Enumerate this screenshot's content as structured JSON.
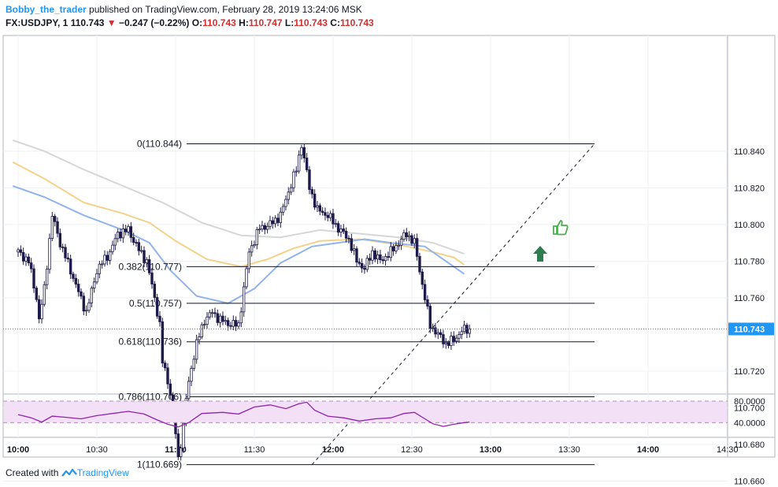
{
  "header": {
    "author": "Bobby_the_trader",
    "published_text": "published on TradingView.com, February 28, 2019 13:24:06 MSK",
    "symbol": "FX:USDJPY, 1",
    "last": "110.743",
    "change": "−0.247 (−0.22%)",
    "ohlc": {
      "o_label": "O:",
      "o": "110.743",
      "h_label": "H:",
      "h": "110.747",
      "l_label": "L:",
      "l": "110.743",
      "c_label": "C:",
      "c": "110.743"
    }
  },
  "footer": {
    "created_with": "Created with",
    "brand": "TradingView"
  },
  "colors": {
    "accent": "#2196f3",
    "down": "#d32f2f",
    "candle": "#1e1b4b",
    "ema_fast": "#90b4ea",
    "ema_mid": "#f2d28a",
    "ema_slow": "#d6d6d6",
    "rsi_line": "#8e24aa",
    "rsi_band": "#f3e0f7",
    "price_tag": "#2196f3",
    "thumb": "#4caf50",
    "arrow": "#2e7d4f"
  },
  "chart_data": {
    "type": "candlestick",
    "symbol": "FX:USDJPY",
    "interval": "1",
    "last_price": 110.743,
    "y_ticks": [
      "110.840",
      "110.820",
      "110.800",
      "110.780",
      "110.760",
      "110.720",
      "110.700",
      "110.680",
      "110.660"
    ],
    "ylim": [
      110.656,
      110.855
    ],
    "x_ticks": [
      {
        "time": "10:00",
        "bold": true
      },
      {
        "time": "10:30",
        "bold": false
      },
      {
        "time": "11:00",
        "bold": true
      },
      {
        "time": "11:30",
        "bold": false
      },
      {
        "time": "12:00",
        "bold": true
      },
      {
        "time": "12:30",
        "bold": false
      },
      {
        "time": "13:00",
        "bold": true
      },
      {
        "time": "13:30",
        "bold": false
      },
      {
        "time": "14:00",
        "bold": true
      },
      {
        "time": "14:30",
        "bold": false
      }
    ],
    "fib_levels": [
      {
        "ratio": "0",
        "price": 110.844,
        "label": "0(110.844)"
      },
      {
        "ratio": "0.382",
        "price": 110.777,
        "label": "0.382(110.777)"
      },
      {
        "ratio": "0.5",
        "price": 110.757,
        "label": "0.5(110.757)"
      },
      {
        "ratio": "0.618",
        "price": 110.736,
        "label": "0.618(110.736)"
      },
      {
        "ratio": "0.786",
        "price": 110.706,
        "label": "0.786(110.706)"
      },
      {
        "ratio": "1",
        "price": 110.669,
        "label": "1(110.669)"
      }
    ],
    "trend_line": {
      "from": [
        112,
        110.669
      ],
      "to": [
        188,
        110.844
      ]
    },
    "close_series": [
      {
        "t": 0,
        "c": 110.785
      },
      {
        "t": 4,
        "c": 110.78
      },
      {
        "t": 7,
        "c": 110.76
      },
      {
        "t": 8,
        "c": 110.748
      },
      {
        "t": 10,
        "c": 110.765
      },
      {
        "t": 13,
        "c": 110.805
      },
      {
        "t": 16,
        "c": 110.79
      },
      {
        "t": 20,
        "c": 110.775
      },
      {
        "t": 23,
        "c": 110.763
      },
      {
        "t": 26,
        "c": 110.752
      },
      {
        "t": 30,
        "c": 110.775
      },
      {
        "t": 35,
        "c": 110.785
      },
      {
        "t": 38,
        "c": 110.795
      },
      {
        "t": 42,
        "c": 110.797
      },
      {
        "t": 46,
        "c": 110.786
      },
      {
        "t": 49,
        "c": 110.78
      },
      {
        "t": 52,
        "c": 110.76
      },
      {
        "t": 54,
        "c": 110.745
      },
      {
        "t": 55,
        "c": 110.725
      },
      {
        "t": 57,
        "c": 110.715
      },
      {
        "t": 59,
        "c": 110.7
      },
      {
        "t": 61,
        "c": 110.672
      },
      {
        "t": 63,
        "c": 110.69
      },
      {
        "t": 64,
        "c": 110.705
      },
      {
        "t": 66,
        "c": 110.722
      },
      {
        "t": 68,
        "c": 110.735
      },
      {
        "t": 71,
        "c": 110.748
      },
      {
        "t": 74,
        "c": 110.752
      },
      {
        "t": 77,
        "c": 110.748
      },
      {
        "t": 80,
        "c": 110.746
      },
      {
        "t": 84,
        "c": 110.745
      },
      {
        "t": 86,
        "c": 110.765
      },
      {
        "t": 88,
        "c": 110.785
      },
      {
        "t": 92,
        "c": 110.798
      },
      {
        "t": 96,
        "c": 110.8
      },
      {
        "t": 100,
        "c": 110.805
      },
      {
        "t": 103,
        "c": 110.818
      },
      {
        "t": 106,
        "c": 110.83
      },
      {
        "t": 108,
        "c": 110.844
      },
      {
        "t": 111,
        "c": 110.82
      },
      {
        "t": 114,
        "c": 110.808
      },
      {
        "t": 118,
        "c": 110.805
      },
      {
        "t": 122,
        "c": 110.798
      },
      {
        "t": 126,
        "c": 110.792
      },
      {
        "t": 129,
        "c": 110.78
      },
      {
        "t": 132,
        "c": 110.776
      },
      {
        "t": 135,
        "c": 110.785
      },
      {
        "t": 138,
        "c": 110.78
      },
      {
        "t": 142,
        "c": 110.785
      },
      {
        "t": 145,
        "c": 110.79
      },
      {
        "t": 148,
        "c": 110.795
      },
      {
        "t": 151,
        "c": 110.79
      },
      {
        "t": 153,
        "c": 110.775
      },
      {
        "t": 155,
        "c": 110.76
      },
      {
        "t": 157,
        "c": 110.745
      },
      {
        "t": 160,
        "c": 110.74
      },
      {
        "t": 163,
        "c": 110.735
      },
      {
        "t": 166,
        "c": 110.737
      },
      {
        "t": 169,
        "c": 110.742
      },
      {
        "t": 172,
        "c": 110.743
      }
    ],
    "ema_fast": [
      {
        "t": -2,
        "v": 110.821
      },
      {
        "t": 10,
        "v": 110.815
      },
      {
        "t": 25,
        "v": 110.805
      },
      {
        "t": 40,
        "v": 110.797
      },
      {
        "t": 50,
        "v": 110.79
      },
      {
        "t": 58,
        "v": 110.775
      },
      {
        "t": 68,
        "v": 110.761
      },
      {
        "t": 80,
        "v": 110.757
      },
      {
        "t": 90,
        "v": 110.765
      },
      {
        "t": 100,
        "v": 110.779
      },
      {
        "t": 112,
        "v": 110.788
      },
      {
        "t": 122,
        "v": 110.79
      },
      {
        "t": 132,
        "v": 110.792
      },
      {
        "t": 142,
        "v": 110.79
      },
      {
        "t": 155,
        "v": 110.788
      },
      {
        "t": 163,
        "v": 110.78
      },
      {
        "t": 170,
        "v": 110.773
      }
    ],
    "ema_mid": [
      {
        "t": -2,
        "v": 110.834
      },
      {
        "t": 10,
        "v": 110.825
      },
      {
        "t": 25,
        "v": 110.812
      },
      {
        "t": 40,
        "v": 110.806
      },
      {
        "t": 50,
        "v": 110.801
      },
      {
        "t": 60,
        "v": 110.791
      },
      {
        "t": 72,
        "v": 110.781
      },
      {
        "t": 85,
        "v": 110.777
      },
      {
        "t": 95,
        "v": 110.781
      },
      {
        "t": 105,
        "v": 110.787
      },
      {
        "t": 115,
        "v": 110.791
      },
      {
        "t": 130,
        "v": 110.792
      },
      {
        "t": 145,
        "v": 110.789
      },
      {
        "t": 158,
        "v": 110.785
      },
      {
        "t": 166,
        "v": 110.782
      },
      {
        "t": 170,
        "v": 110.778
      }
    ],
    "ema_slow": [
      {
        "t": -2,
        "v": 110.846
      },
      {
        "t": 10,
        "v": 110.84
      },
      {
        "t": 25,
        "v": 110.83
      },
      {
        "t": 40,
        "v": 110.821
      },
      {
        "t": 55,
        "v": 110.812
      },
      {
        "t": 70,
        "v": 110.801
      },
      {
        "t": 85,
        "v": 110.794
      },
      {
        "t": 100,
        "v": 110.793
      },
      {
        "t": 115,
        "v": 110.797
      },
      {
        "t": 130,
        "v": 110.795
      },
      {
        "t": 145,
        "v": 110.793
      },
      {
        "t": 158,
        "v": 110.79
      },
      {
        "t": 170,
        "v": 110.784
      }
    ],
    "rsi": {
      "y_ticks": [
        "80.0000",
        "40.0000"
      ],
      "band": [
        40,
        80
      ],
      "ylim": [
        18,
        98
      ],
      "points": [
        {
          "t": 0,
          "v": 55
        },
        {
          "t": 5,
          "v": 49
        },
        {
          "t": 9,
          "v": 41
        },
        {
          "t": 13,
          "v": 52
        },
        {
          "t": 18,
          "v": 50
        },
        {
          "t": 24,
          "v": 47
        },
        {
          "t": 30,
          "v": 53
        },
        {
          "t": 36,
          "v": 57
        },
        {
          "t": 42,
          "v": 61
        },
        {
          "t": 48,
          "v": 56
        },
        {
          "t": 53,
          "v": 45
        },
        {
          "t": 57,
          "v": 37
        },
        {
          "t": 61,
          "v": 32
        },
        {
          "t": 65,
          "v": 40
        },
        {
          "t": 70,
          "v": 57
        },
        {
          "t": 78,
          "v": 59
        },
        {
          "t": 84,
          "v": 56
        },
        {
          "t": 90,
          "v": 69
        },
        {
          "t": 96,
          "v": 73
        },
        {
          "t": 102,
          "v": 66
        },
        {
          "t": 107,
          "v": 75
        },
        {
          "t": 110,
          "v": 78
        },
        {
          "t": 113,
          "v": 63
        },
        {
          "t": 118,
          "v": 52
        },
        {
          "t": 124,
          "v": 49
        },
        {
          "t": 130,
          "v": 43
        },
        {
          "t": 136,
          "v": 47
        },
        {
          "t": 142,
          "v": 49
        },
        {
          "t": 147,
          "v": 57
        },
        {
          "t": 151,
          "v": 59
        },
        {
          "t": 155,
          "v": 47
        },
        {
          "t": 158,
          "v": 38
        },
        {
          "t": 162,
          "v": 33
        },
        {
          "t": 166,
          "v": 37
        },
        {
          "t": 170,
          "v": 40
        },
        {
          "t": 172,
          "v": 41
        }
      ]
    },
    "markers": {
      "thumb_up": "thumb-up-icon",
      "arrow_up": "arrow-up-icon"
    }
  }
}
